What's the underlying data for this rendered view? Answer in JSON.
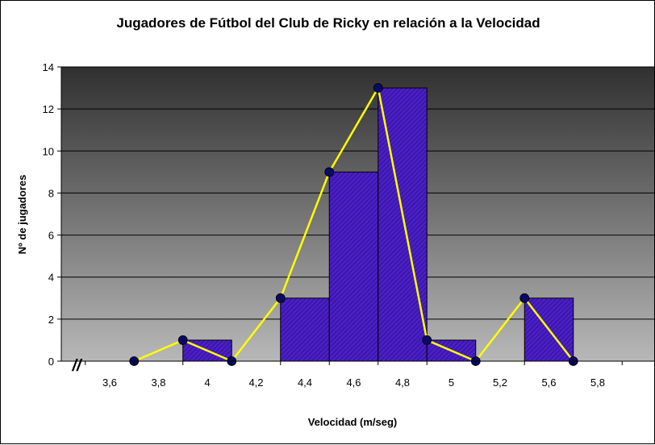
{
  "chart_data": {
    "type": "bar",
    "title": "Jugadores de Fútbol del Club de Ricky en relación a la Velocidad",
    "xlabel": "Velocidad (m/seg)",
    "ylabel": "Nº de jugadores",
    "ylim": [
      0,
      14
    ],
    "y_ticks": [
      "0",
      "2",
      "4",
      "6",
      "8",
      "10",
      "12",
      "14"
    ],
    "x_ticks": [
      "3,6",
      "3,8",
      "4",
      "4,2",
      "4,4",
      "4,6",
      "4,8",
      "5",
      "5,2",
      "5,6",
      "5,8"
    ],
    "axis_break": "//",
    "grid": true,
    "legend": "none",
    "histogram": {
      "name": "histogram",
      "bins": [
        {
          "from": "3,8",
          "to": "4",
          "value": 1
        },
        {
          "from": "4",
          "to": "4,2",
          "value": 0
        },
        {
          "from": "4,2",
          "to": "4,4",
          "value": 3
        },
        {
          "from": "4,4",
          "to": "4,6",
          "value": 9
        },
        {
          "from": "4,6",
          "to": "4,8",
          "value": 13
        },
        {
          "from": "4,8",
          "to": "5",
          "value": 1
        },
        {
          "from": "5",
          "to": "5,2",
          "value": 0
        },
        {
          "from": "5,2",
          "to": "5,6",
          "value": 3
        }
      ]
    },
    "polygon": {
      "name": "frequency-polygon",
      "values": [
        0,
        1,
        0,
        3,
        9,
        13,
        1,
        0,
        3,
        0
      ]
    },
    "colors": {
      "bar_fill": "#4a1fc8",
      "bar_hatch": "#2a0e78",
      "bar_stroke": "#000000",
      "line": "#ffff00",
      "marker": "#0a0a66",
      "plot_bg_top": "#303030",
      "plot_bg_bottom": "#b8b8b8",
      "gridline": "#000000"
    }
  }
}
